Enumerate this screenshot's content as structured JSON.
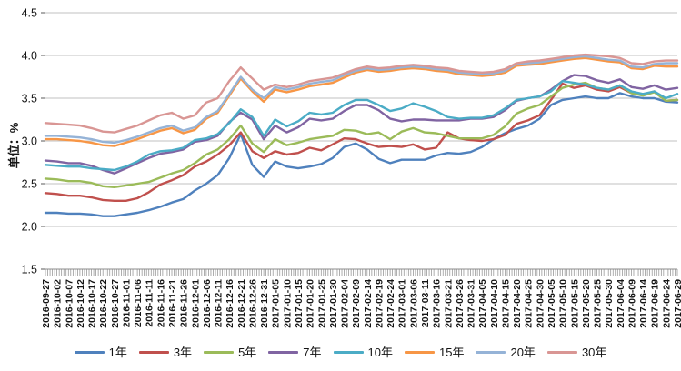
{
  "chart_data": {
    "type": "line",
    "ylabel": "单位：%",
    "ylim": [
      1.5,
      4.5
    ],
    "yticks": [
      1.5,
      2.0,
      2.5,
      3.0,
      3.5,
      4.0,
      4.5
    ],
    "grid": "horizontal-only",
    "legend_position": "bottom",
    "x_tick_label_rotation": -90,
    "minor_ticks_per_label": 5,
    "axis_colors": {
      "gridline": "#C2C2C2",
      "axis_line": "#8C8C8C",
      "tick_stub": "#595959",
      "axis_text": "#141414"
    },
    "x": [
      "2016-09-27",
      "2016-10-02",
      "2016-10-07",
      "2016-10-12",
      "2016-10-17",
      "2016-10-22",
      "2016-10-27",
      "2016-11-01",
      "2016-11-06",
      "2016-11-11",
      "2016-11-16",
      "2016-11-21",
      "2016-11-26",
      "2016-12-01",
      "2016-12-06",
      "2016-12-11",
      "2016-12-16",
      "2016-12-21",
      "2016-12-26",
      "2016-12-31",
      "2017-01-05",
      "2017-01-10",
      "2017-01-15",
      "2017-01-20",
      "2017-01-25",
      "2017-01-30",
      "2017-02-04",
      "2017-02-09",
      "2017-02-14",
      "2017-02-19",
      "2017-02-24",
      "2017-03-01",
      "2017-03-06",
      "2017-03-11",
      "2017-03-16",
      "2017-03-21",
      "2017-03-26",
      "2017-03-31",
      "2017-04-05",
      "2017-04-10",
      "2017-04-15",
      "2017-04-20",
      "2017-04-25",
      "2017-04-30",
      "2017-05-05",
      "2017-05-10",
      "2017-05-15",
      "2017-05-20",
      "2017-05-25",
      "2017-05-30",
      "2017-06-04",
      "2017-06-09",
      "2017-06-14",
      "2017-06-19",
      "2017-06-24",
      "2017-06-29"
    ],
    "series": [
      {
        "name": "1年",
        "color": "#4F81BD",
        "values": [
          2.16,
          2.16,
          2.15,
          2.15,
          2.14,
          2.12,
          2.12,
          2.14,
          2.16,
          2.19,
          2.23,
          2.28,
          2.32,
          2.42,
          2.5,
          2.6,
          2.8,
          3.08,
          2.72,
          2.58,
          2.76,
          2.7,
          2.68,
          2.7,
          2.73,
          2.8,
          2.93,
          2.97,
          2.9,
          2.79,
          2.74,
          2.78,
          2.78,
          2.78,
          2.83,
          2.86,
          2.85,
          2.87,
          2.93,
          3.02,
          3.09,
          3.14,
          3.18,
          3.26,
          3.42,
          3.48,
          3.5,
          3.52,
          3.5,
          3.5,
          3.56,
          3.52,
          3.5,
          3.5,
          3.46,
          3.45
        ]
      },
      {
        "name": "3年",
        "color": "#C0504D",
        "values": [
          2.39,
          2.38,
          2.36,
          2.36,
          2.34,
          2.31,
          2.3,
          2.3,
          2.33,
          2.4,
          2.49,
          2.54,
          2.6,
          2.7,
          2.76,
          2.84,
          2.95,
          3.1,
          2.88,
          2.8,
          2.88,
          2.84,
          2.86,
          2.92,
          2.89,
          2.96,
          3.03,
          3.02,
          2.97,
          2.93,
          2.94,
          2.93,
          2.96,
          2.9,
          2.92,
          3.1,
          3.03,
          3.01,
          3.0,
          3.02,
          3.07,
          3.2,
          3.24,
          3.3,
          3.48,
          3.67,
          3.62,
          3.65,
          3.6,
          3.58,
          3.63,
          3.56,
          3.54,
          3.58,
          3.47,
          3.48
        ]
      },
      {
        "name": "5年",
        "color": "#9BBB59",
        "values": [
          2.56,
          2.55,
          2.53,
          2.53,
          2.51,
          2.47,
          2.46,
          2.48,
          2.5,
          2.52,
          2.57,
          2.62,
          2.66,
          2.74,
          2.84,
          2.9,
          3.02,
          3.18,
          2.97,
          2.87,
          3.02,
          2.95,
          2.98,
          3.02,
          3.04,
          3.06,
          3.13,
          3.12,
          3.08,
          3.1,
          3.02,
          3.11,
          3.15,
          3.1,
          3.09,
          3.06,
          3.03,
          3.03,
          3.03,
          3.07,
          3.17,
          3.32,
          3.38,
          3.42,
          3.52,
          3.62,
          3.66,
          3.68,
          3.62,
          3.6,
          3.65,
          3.56,
          3.53,
          3.57,
          3.47,
          3.48
        ]
      },
      {
        "name": "7年",
        "color": "#8064A2",
        "values": [
          2.77,
          2.76,
          2.74,
          2.74,
          2.71,
          2.66,
          2.62,
          2.68,
          2.74,
          2.8,
          2.85,
          2.87,
          2.9,
          2.99,
          3.01,
          3.06,
          3.22,
          3.33,
          3.25,
          3.02,
          3.18,
          3.1,
          3.16,
          3.26,
          3.24,
          3.26,
          3.35,
          3.42,
          3.42,
          3.36,
          3.26,
          3.23,
          3.25,
          3.25,
          3.24,
          3.24,
          3.24,
          3.26,
          3.26,
          3.28,
          3.36,
          3.47,
          3.5,
          3.52,
          3.6,
          3.7,
          3.77,
          3.76,
          3.71,
          3.68,
          3.72,
          3.63,
          3.61,
          3.65,
          3.6,
          3.62
        ]
      },
      {
        "name": "10年",
        "color": "#4BACC6",
        "values": [
          2.72,
          2.71,
          2.7,
          2.7,
          2.68,
          2.67,
          2.66,
          2.7,
          2.76,
          2.84,
          2.88,
          2.89,
          2.92,
          3.01,
          3.03,
          3.08,
          3.21,
          3.37,
          3.28,
          3.06,
          3.25,
          3.17,
          3.23,
          3.33,
          3.31,
          3.33,
          3.42,
          3.48,
          3.48,
          3.42,
          3.35,
          3.38,
          3.44,
          3.4,
          3.35,
          3.28,
          3.26,
          3.27,
          3.27,
          3.3,
          3.38,
          3.48,
          3.5,
          3.52,
          3.58,
          3.7,
          3.68,
          3.66,
          3.62,
          3.6,
          3.65,
          3.58,
          3.55,
          3.58,
          3.5,
          3.55
        ]
      },
      {
        "name": "15年",
        "color": "#F79646",
        "values": [
          3.02,
          3.02,
          3.01,
          3.0,
          2.98,
          2.95,
          2.94,
          2.98,
          3.02,
          3.07,
          3.12,
          3.15,
          3.09,
          3.13,
          3.26,
          3.33,
          3.53,
          3.73,
          3.58,
          3.46,
          3.6,
          3.57,
          3.6,
          3.64,
          3.66,
          3.68,
          3.74,
          3.8,
          3.83,
          3.81,
          3.82,
          3.84,
          3.85,
          3.84,
          3.82,
          3.81,
          3.78,
          3.77,
          3.76,
          3.77,
          3.8,
          3.88,
          3.89,
          3.9,
          3.92,
          3.94,
          3.96,
          3.97,
          3.95,
          3.93,
          3.92,
          3.85,
          3.84,
          3.88,
          3.87,
          3.87
        ]
      },
      {
        "name": "20年",
        "color": "#95B3D7",
        "values": [
          3.06,
          3.06,
          3.05,
          3.04,
          3.02,
          2.99,
          2.98,
          3.01,
          3.05,
          3.1,
          3.15,
          3.18,
          3.12,
          3.16,
          3.28,
          3.35,
          3.55,
          3.75,
          3.6,
          3.5,
          3.63,
          3.6,
          3.63,
          3.67,
          3.69,
          3.71,
          3.77,
          3.82,
          3.85,
          3.83,
          3.84,
          3.86,
          3.87,
          3.86,
          3.84,
          3.83,
          3.8,
          3.79,
          3.78,
          3.79,
          3.82,
          3.9,
          3.91,
          3.92,
          3.94,
          3.96,
          3.98,
          3.99,
          3.97,
          3.95,
          3.94,
          3.87,
          3.86,
          3.9,
          3.91,
          3.91
        ]
      },
      {
        "name": "30年",
        "color": "#D99694",
        "values": [
          3.21,
          3.2,
          3.19,
          3.18,
          3.15,
          3.11,
          3.1,
          3.14,
          3.18,
          3.24,
          3.3,
          3.33,
          3.26,
          3.3,
          3.45,
          3.5,
          3.7,
          3.86,
          3.73,
          3.6,
          3.66,
          3.63,
          3.66,
          3.7,
          3.72,
          3.74,
          3.79,
          3.84,
          3.87,
          3.85,
          3.86,
          3.88,
          3.89,
          3.88,
          3.86,
          3.85,
          3.82,
          3.81,
          3.8,
          3.81,
          3.84,
          3.91,
          3.93,
          3.94,
          3.96,
          3.98,
          4.0,
          4.01,
          4.0,
          3.99,
          3.97,
          3.91,
          3.9,
          3.93,
          3.94,
          3.94
        ]
      }
    ]
  }
}
